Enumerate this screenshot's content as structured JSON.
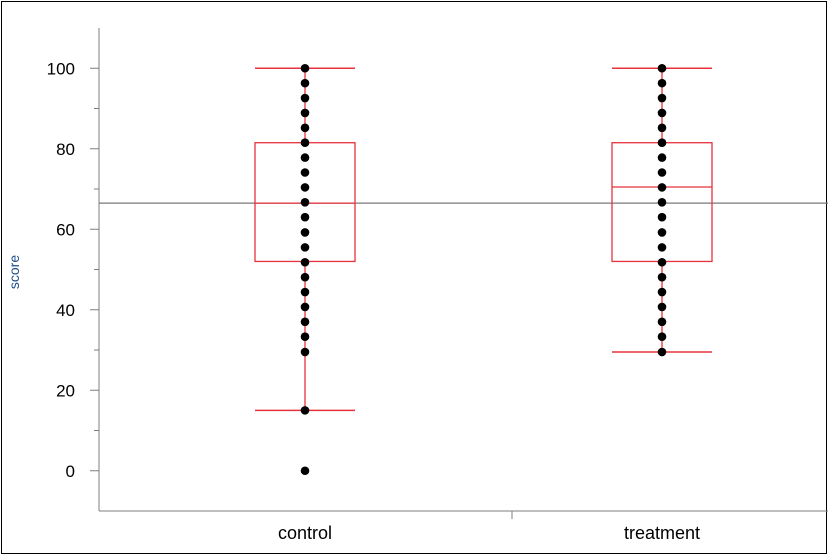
{
  "chart_data": {
    "type": "boxplot",
    "ylabel": "score",
    "ylim": [
      -10,
      110
    ],
    "yticks": [
      0,
      20,
      40,
      60,
      80,
      100
    ],
    "categories": [
      "control",
      "treatment"
    ],
    "reference_line": 66.5,
    "colors": {
      "box": "#e8323c",
      "points": "#000000",
      "reference": "#7a7a7a",
      "axis": "#7f7f7f"
    },
    "boxes": [
      {
        "category": "control",
        "min": 15,
        "q1": 52,
        "median": 66.5,
        "q3": 81.5,
        "max": 100,
        "points": [
          0,
          15,
          29.5,
          33.3,
          37,
          40.7,
          44.4,
          48.1,
          51.8,
          55.5,
          59.2,
          63,
          66.7,
          70.4,
          74.1,
          77.8,
          81.5,
          85.2,
          88.9,
          92.6,
          96.3,
          100
        ]
      },
      {
        "category": "treatment",
        "min": 29.5,
        "q1": 52,
        "median": 70.5,
        "q3": 81.5,
        "max": 100,
        "points": [
          29.5,
          33.3,
          37,
          40.7,
          44.4,
          48.1,
          51.8,
          55.5,
          59.2,
          63,
          66.7,
          70.4,
          74.1,
          77.8,
          81.5,
          85.2,
          88.9,
          92.6,
          96.3,
          100
        ]
      }
    ]
  }
}
